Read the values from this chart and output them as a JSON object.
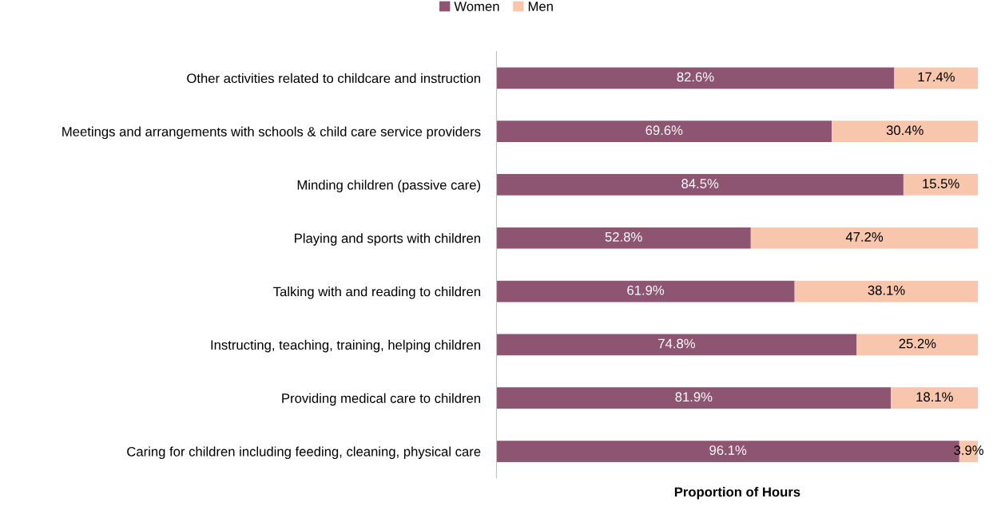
{
  "chart_data": {
    "type": "bar",
    "orientation": "horizontal",
    "stacked": true,
    "categories": [
      "Other activities related to childcare and instruction",
      "Meetings and arrangements with schools & child care service providers",
      "Minding children (passive care)",
      "Playing and sports with children",
      "Talking with and reading to children",
      "Instructing, teaching, training, helping children",
      "Providing medical care to children",
      "Caring for children including feeding, cleaning, physical care"
    ],
    "series": [
      {
        "name": "Women",
        "color": "#8e5572",
        "values": [
          82.6,
          69.6,
          84.5,
          52.8,
          61.9,
          74.8,
          81.9,
          96.1
        ],
        "value_labels": [
          "82.6%",
          "69.6%",
          "84.5%",
          "52.8%",
          "61.9%",
          "74.8%",
          "81.9%",
          "96.1%"
        ]
      },
      {
        "name": "Men",
        "color": "#f8c6ac",
        "values": [
          17.4,
          30.4,
          15.5,
          47.2,
          38.1,
          25.2,
          18.1,
          3.9
        ],
        "value_labels": [
          "17.4%",
          "30.4%",
          "15.5%",
          "47.2%",
          "38.1%",
          "25.2%",
          "18.1%",
          "3.9%"
        ]
      }
    ],
    "xlim": [
      0,
      100
    ],
    "xlabel": "Proportion of Hours",
    "legend": "top",
    "grid": false,
    "tick_labels": "y"
  }
}
